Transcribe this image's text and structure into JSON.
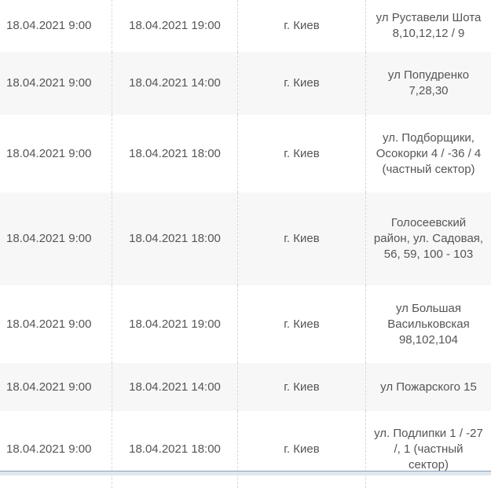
{
  "rows": [
    {
      "start": "18.04.2021 9:00",
      "end": "18.04.2021 19:00",
      "city": "г. Киев",
      "address": "ул Руставели Шота\n8,10,12,12 / 9"
    },
    {
      "start": "18.04.2021 9:00",
      "end": "18.04.2021 14:00",
      "city": "г. Киев",
      "address": "ул Попудренко\n7,28,30"
    },
    {
      "start": "18.04.2021 9:00",
      "end": "18.04.2021 18:00",
      "city": "г. Киев",
      "address": "ул. Подборщики,\nОсокорки 4 / -36 / 4\n(частный сектор)"
    },
    {
      "start": "18.04.2021 9:00",
      "end": "18.04.2021 18:00",
      "city": "г. Киев",
      "address": "Голосеевский\nрайон, ул. Садовая,\n56, 59, 100 - 103"
    },
    {
      "start": "18.04.2021 9:00",
      "end": "18.04.2021 19:00",
      "city": "г. Киев",
      "address": "ул Большая\nВасильковская\n98,102,104"
    },
    {
      "start": "18.04.2021 9:00",
      "end": "18.04.2021 14:00",
      "city": "г. Киев",
      "address": "ул Пожарского 15"
    },
    {
      "start": "18.04.2021 9:00",
      "end": "18.04.2021 18:00",
      "city": "г. Киев",
      "address": "ул. Подлипки 1 / -27\n/, 1 (частный\nсектор)"
    }
  ]
}
